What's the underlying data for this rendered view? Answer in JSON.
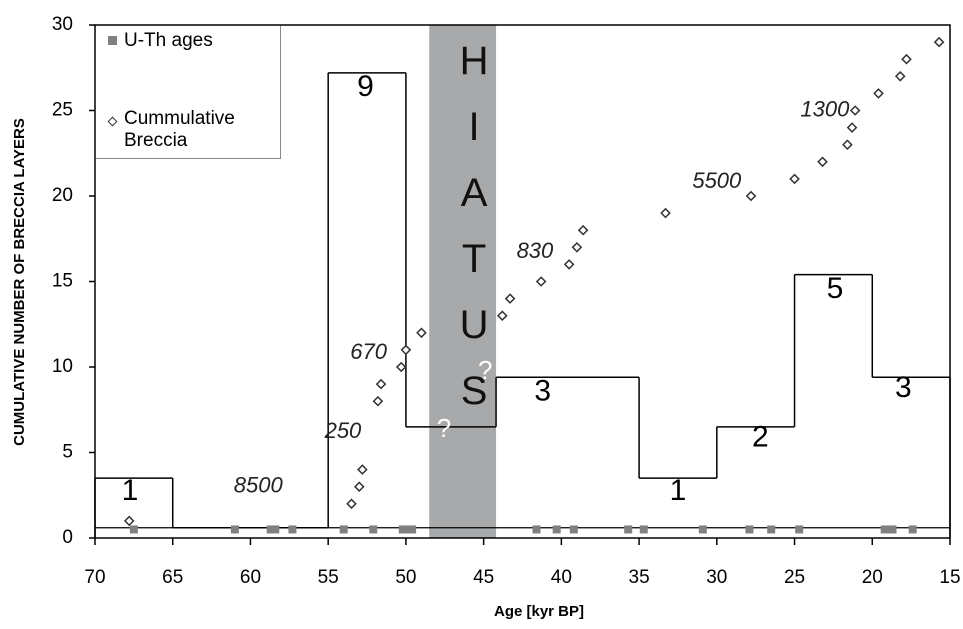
{
  "chart_data": {
    "type": "scatter",
    "ylabel": "CUMULATIVE NUMBER OF BRECCIA LAYERS",
    "xlabel": "Age [kyr BP]",
    "xlim": [
      70,
      15
    ],
    "xticks": [
      70,
      65,
      60,
      55,
      50,
      45,
      40,
      35,
      30,
      25,
      20,
      15
    ],
    "ylim": [
      0,
      30
    ],
    "yticks": [
      0,
      5,
      10,
      15,
      20,
      25,
      30
    ],
    "series": [
      {
        "name": "U-Th ages",
        "color": "#808080",
        "x": [
          67.5,
          61,
          58.7,
          58.4,
          57.3,
          54,
          52.1,
          50.2,
          49.9,
          49.6,
          41.6,
          40.3,
          39.2,
          35.7,
          34.7,
          30.9,
          27.9,
          26.5,
          24.7,
          19.2,
          18.9,
          18.7,
          17.4
        ],
        "values": [
          0.5,
          0.5,
          0.5,
          0.5,
          0.5,
          0.5,
          0.5,
          0.5,
          0.5,
          0.5,
          0.5,
          0.5,
          0.5,
          0.5,
          0.5,
          0.5,
          0.5,
          0.5,
          0.5,
          0.5,
          0.5,
          0.5,
          0.5
        ]
      },
      {
        "name": "Cummulative Breccia",
        "color": "#333333",
        "x": [
          67.8,
          53.5,
          53,
          52.8,
          51.8,
          51.6,
          50.3,
          50,
          49,
          43.8,
          43.3,
          41.3,
          39.5,
          39,
          38.6,
          33.3,
          27.8,
          25,
          23.2,
          21.6,
          21.3,
          21.1,
          19.6,
          18.2,
          17.8,
          15.7
        ],
        "values": [
          1,
          2,
          3,
          4,
          8,
          9,
          10,
          11,
          12,
          13,
          14,
          15,
          16,
          17,
          18,
          19,
          20,
          21,
          22,
          23,
          24,
          25,
          26,
          27,
          28,
          29
        ]
      }
    ],
    "steps": {
      "color": "#000000",
      "bins": [
        70,
        65,
        55,
        50,
        44.2,
        35,
        30,
        25,
        20,
        15
      ],
      "values": [
        3.5,
        0.6,
        27.2,
        6.5,
        9.4,
        3.5,
        6.5,
        15.4,
        9.4
      ]
    },
    "reference_line": 0.6,
    "hiatus": {
      "text": "HIATUS",
      "span": [
        48.5,
        44.2
      ],
      "color": "#a7a9ab"
    },
    "count_labels": [
      {
        "text": "1",
        "x": 67.75,
        "y": 2.7
      },
      {
        "text": "9",
        "x": 52.6,
        "y": 26.3
      },
      {
        "text": "3",
        "x": 41.2,
        "y": 8.5
      },
      {
        "text": "1",
        "x": 32.5,
        "y": 2.7
      },
      {
        "text": "2",
        "x": 27.2,
        "y": 5.8
      },
      {
        "text": "5",
        "x": 22.4,
        "y": 14.5
      },
      {
        "text": "3",
        "x": 18,
        "y": 8.7
      }
    ],
    "rate_labels": [
      {
        "text": "8500",
        "x": 59.5,
        "y": 3.0
      },
      {
        "text": "250",
        "x": 54.05,
        "y": 6.2
      },
      {
        "text": "670",
        "x": 52.4,
        "y": 10.8
      },
      {
        "text": "830",
        "x": 41.7,
        "y": 16.7
      },
      {
        "text": "5500",
        "x": 30,
        "y": 20.8
      },
      {
        "text": "1300",
        "x": 23.05,
        "y": 25
      }
    ],
    "question_marks": [
      {
        "text": "?",
        "x": 47.55,
        "y": 6.3
      },
      {
        "text": "?",
        "x": 44.9,
        "y": 9.7
      }
    ]
  }
}
